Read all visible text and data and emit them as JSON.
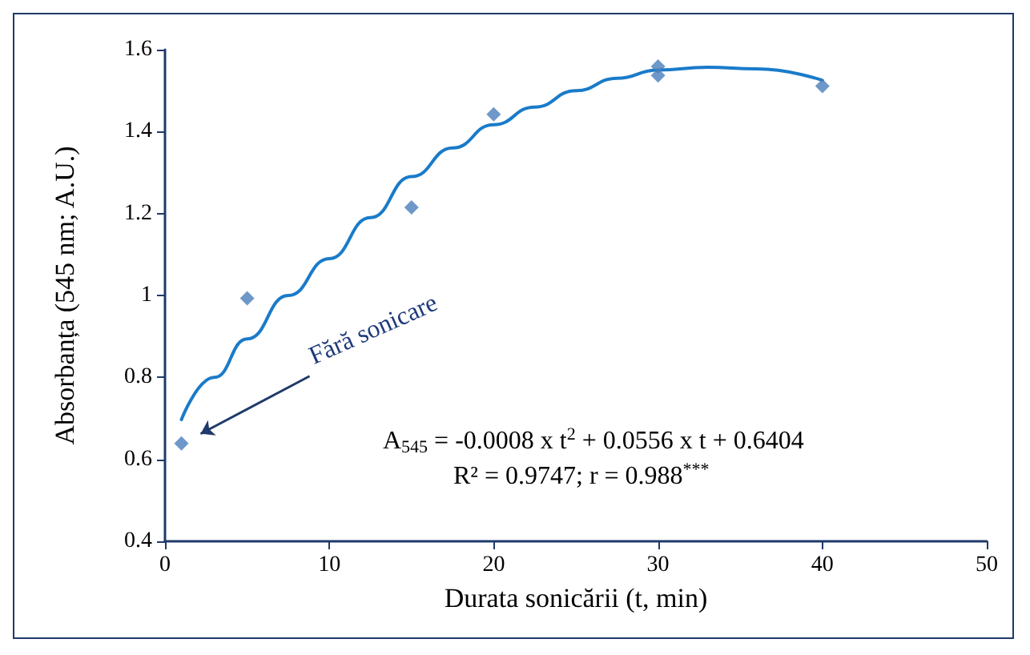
{
  "chart_data": {
    "type": "scatter",
    "xlabel": "Durata sonicării (t, min)",
    "ylabel": "Absorbanța (545 nm; A.U.)",
    "xlim": [
      0,
      50
    ],
    "xticks": [
      0,
      10,
      20,
      30,
      40,
      50
    ],
    "ylim": [
      0.4,
      1.6
    ],
    "yticks": [
      0.4,
      0.6,
      0.8,
      1,
      1.2,
      1.4,
      1.6
    ],
    "grid": false,
    "marker": "diamond",
    "series": [
      {
        "color": "#4a7ebb",
        "x": [
          1,
          5,
          15,
          20,
          30,
          30,
          40
        ],
        "values": [
          0.639,
          0.993,
          1.215,
          1.442,
          1.559,
          1.537,
          1.511
        ]
      },
      {
        "type": "line",
        "color": "#1a7bc9",
        "marker": "none",
        "line_style": "solid",
        "x": [
          1,
          3,
          5,
          7.5,
          10,
          12.5,
          15,
          17.5,
          20,
          22.5,
          25,
          27.5,
          30,
          33,
          36,
          40
        ],
        "values": [
          0.697,
          0.8,
          0.894,
          1.0,
          1.09,
          1.19,
          1.29,
          1.36,
          1.417,
          1.46,
          1.5,
          1.53,
          1.55,
          1.557,
          1.553,
          1.525
        ]
      }
    ],
    "annotations": [
      "Fără sonicare",
      "A$_{545}$ = -0.0008 x t$^{2}$ + 0.0556 x t + 0.6404",
      "R² = 0.9747; r = 0.988$^{***}$"
    ]
  }
}
